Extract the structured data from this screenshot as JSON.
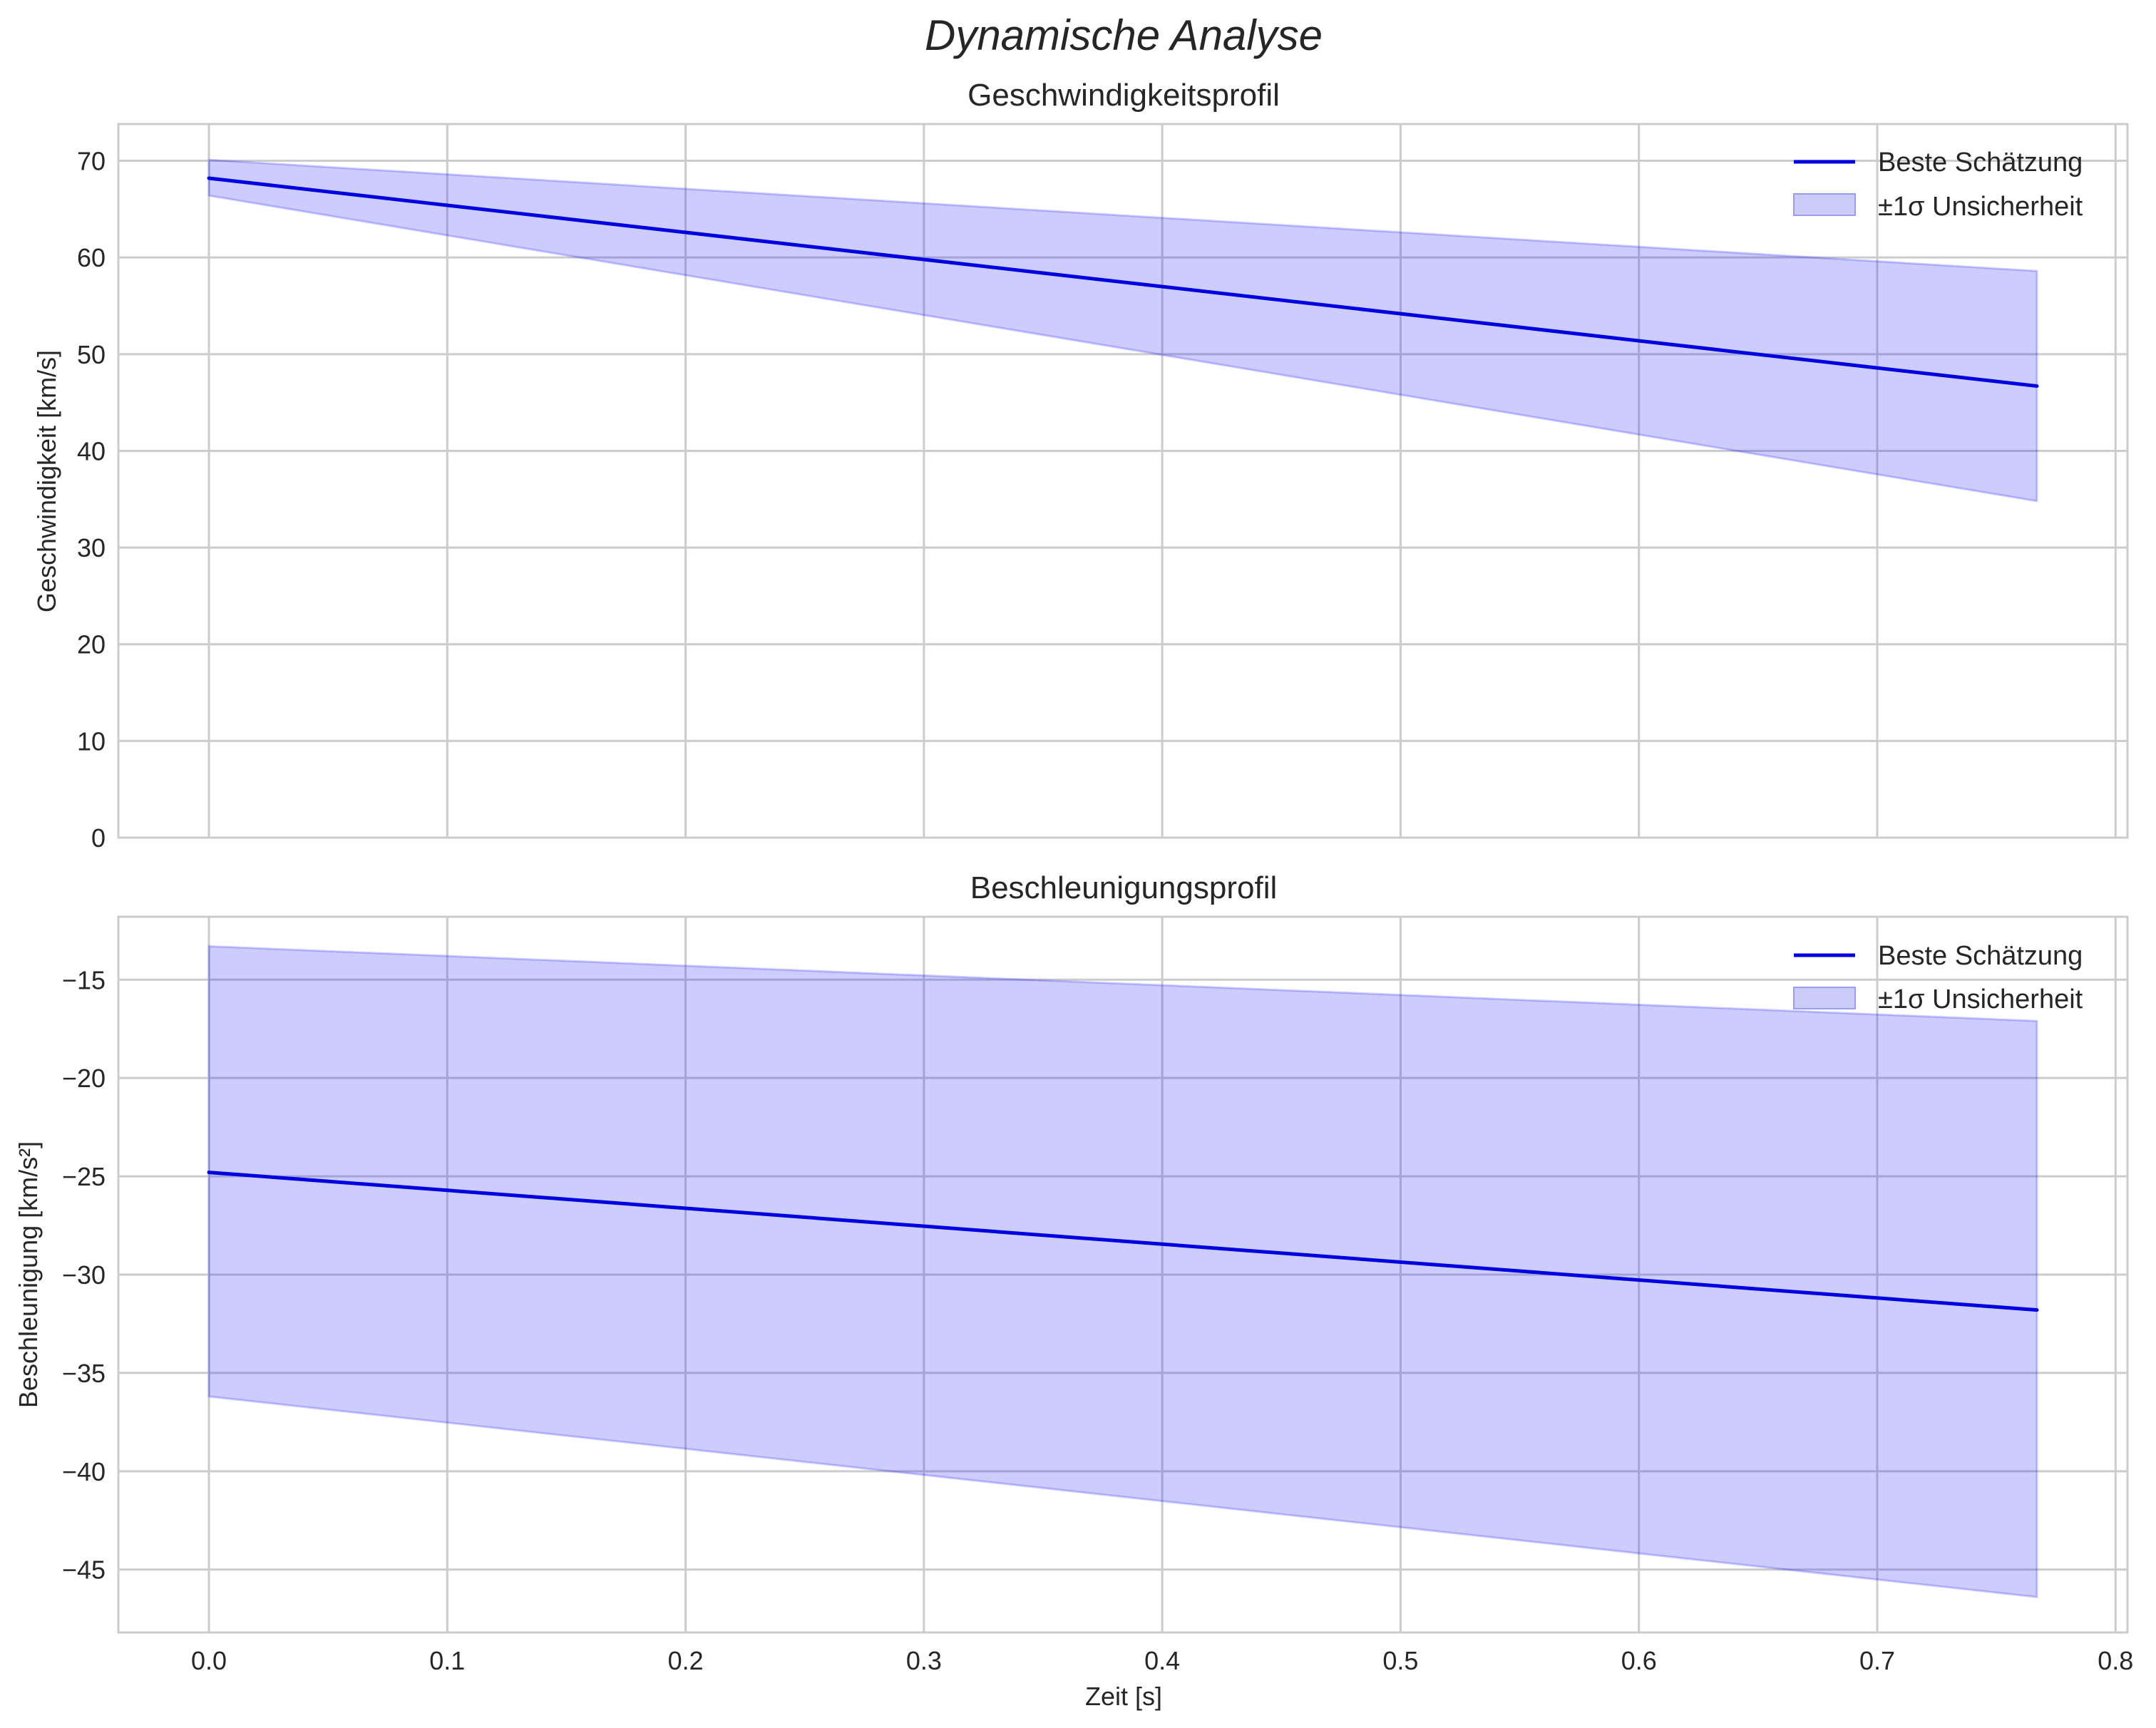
{
  "figure": {
    "suptitle": "Dynamische Analyse",
    "xlabel": "Zeit [s]",
    "legend": {
      "line_label": "Beste Schätzung",
      "band_label": "±1σ Unsicherheit"
    },
    "colors": {
      "line": "#0000e0",
      "band_fill": "#ccccfb",
      "band_edge": "#9b9bf0",
      "grid": "#cccccc",
      "spine": "#cccccc",
      "text": "#262626"
    }
  },
  "chart_data": [
    {
      "type": "line",
      "title": "Geschwindigkeitsprofil",
      "xlabel": "",
      "ylabel": "Geschwindigkeit [km/s]",
      "xlim": [
        -0.038,
        0.805
      ],
      "ylim": [
        0,
        73.8
      ],
      "xticks": [
        "0.0",
        "0.1",
        "0.2",
        "0.3",
        "0.4",
        "0.5",
        "0.6",
        "0.7",
        "0.8"
      ],
      "yticks": [
        "0",
        "10",
        "20",
        "30",
        "40",
        "50",
        "60",
        "70"
      ],
      "grid": true,
      "legend_position": "upper right",
      "x": [
        0.0,
        0.767
      ],
      "series": [
        {
          "name": "Beste Schätzung",
          "values": [
            68.2,
            46.7
          ]
        },
        {
          "name": "±1σ Unsicherheit (oben)",
          "values": [
            70.1,
            58.6
          ]
        },
        {
          "name": "±1σ Unsicherheit (unten)",
          "values": [
            66.4,
            34.8
          ]
        }
      ]
    },
    {
      "type": "line",
      "title": "Beschleunigungsprofil",
      "xlabel": "Zeit [s]",
      "ylabel": "Beschleunigung [km/s²]",
      "xlim": [
        -0.038,
        0.805
      ],
      "ylim": [
        -48.2,
        -11.8
      ],
      "xticks": [
        "0.0",
        "0.1",
        "0.2",
        "0.3",
        "0.4",
        "0.5",
        "0.6",
        "0.7",
        "0.8"
      ],
      "yticks": [
        "−15",
        "−20",
        "−25",
        "−30",
        "−35",
        "−40",
        "−45"
      ],
      "grid": true,
      "legend_position": "upper right",
      "x": [
        0.0,
        0.767
      ],
      "series": [
        {
          "name": "Beste Schätzung",
          "values": [
            -24.8,
            -31.8
          ]
        },
        {
          "name": "±1σ Unsicherheit (oben)",
          "values": [
            -13.3,
            -17.1
          ]
        },
        {
          "name": "±1σ Unsicherheit (unten)",
          "values": [
            -36.2,
            -46.4
          ]
        }
      ]
    }
  ]
}
